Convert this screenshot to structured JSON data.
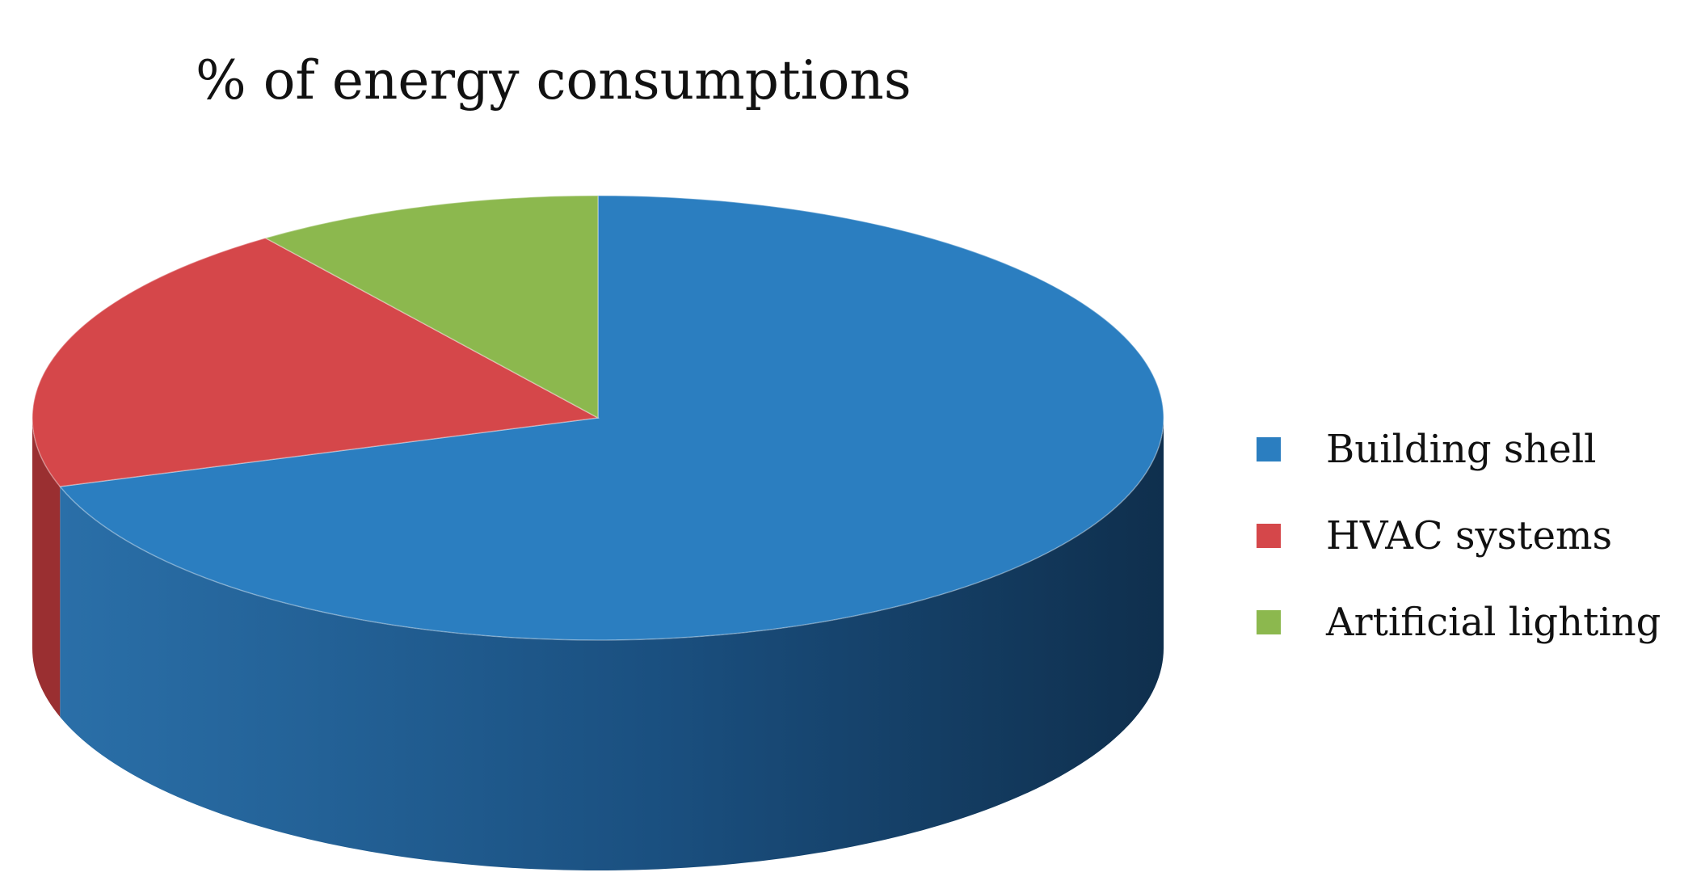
{
  "chart_data": {
    "type": "pie",
    "title": "% of energy consumptions",
    "categories": [
      "Building shell",
      "HVAC systems",
      "Artificial lighting"
    ],
    "values": [
      70,
      20,
      10
    ],
    "colors": [
      "#2b7ec0",
      "#d5474a",
      "#8cb84e"
    ],
    "side_colors": [
      "#1c5b8e",
      "#9a2f31",
      "#5f8232"
    ],
    "start_angle_deg": 0,
    "direction": "clockwise",
    "style": "3d",
    "legend_position": "right"
  }
}
